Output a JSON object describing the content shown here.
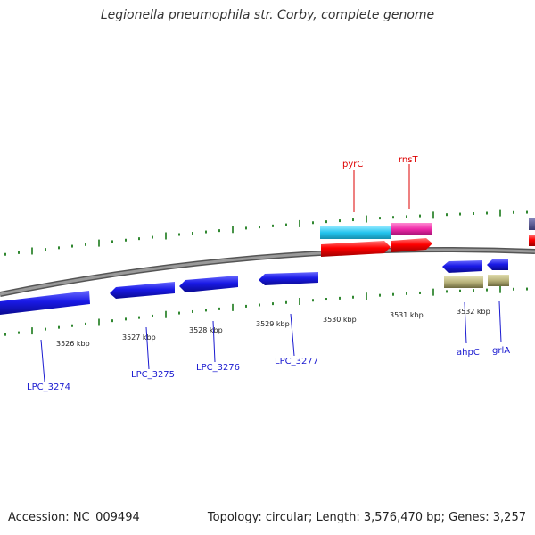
{
  "title": "Legionella pneumophila str. Corby, complete genome",
  "footer": {
    "accession": "Accession: NC_009494",
    "summary": "Topology: circular; Length: 3,576,470 bp; Genes: 3,257"
  },
  "colors": {
    "backbone": "#8a8a8a",
    "tick": "#1a7a1a",
    "gene_blue": "#1a1ae6",
    "gene_khaki": "#b8b27a",
    "cds_red": "#ff0000",
    "cds_cyan": "#22c4ee",
    "cds_magenta": "#ee2aa8",
    "cds_slate": "#4a4a8a",
    "label_blue": "#1a1ad0",
    "label_red": "#dd0000"
  },
  "scale_labels": [
    "3526 kbp",
    "3527 kbp",
    "3528 kbp",
    "3529 kbp",
    "3530 kbp",
    "3531 kbp",
    "3532 kbp"
  ],
  "gene_labels": {
    "lpc_3274": "LPC_3274",
    "lpc_3275": "LPC_3275",
    "lpc_3276": "LPC_3276",
    "lpc_3277": "LPC_3277",
    "ahpc": "ahpC",
    "grla": "grlA",
    "pyrc": "pyrC",
    "rnst": "rnsT"
  }
}
